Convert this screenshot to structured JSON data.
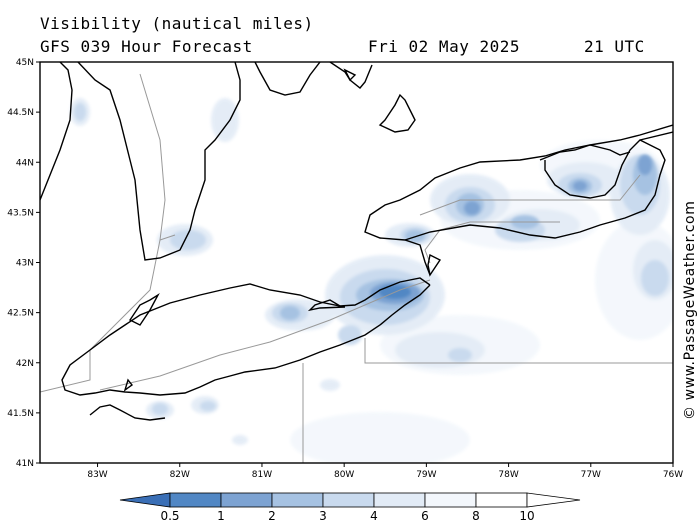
{
  "header": {
    "title": "Visibility (nautical miles)",
    "subtitle": "GFS 039 Hour Forecast",
    "date": "Fri 02 May 2025",
    "time": "21 UTC"
  },
  "map": {
    "lat_labels": [
      "45N",
      "44.5N",
      "44N",
      "43.5N",
      "43N",
      "42.5N",
      "42N",
      "41.5N",
      "41N"
    ],
    "lon_labels": [
      "83W",
      "82W",
      "81W",
      "80W",
      "79W",
      "78W",
      "77W",
      "76W"
    ],
    "lat_range": [
      41,
      45
    ],
    "lon_range": [
      -83.7,
      -76
    ],
    "colors": {
      "coast": "#000000",
      "border": "#999999",
      "v05": "#3a6fb6",
      "v1": "#5187c4",
      "v2": "#7da3d2",
      "v3": "#a6c2e2",
      "v4": "#c9daee",
      "v6": "#e2ebf6",
      "v8": "#f3f7fc"
    }
  },
  "legend": {
    "labels": [
      "0.5",
      "1",
      "2",
      "3",
      "4",
      "6",
      "8",
      "10"
    ],
    "colors": [
      "#3a6fb6",
      "#5187c4",
      "#7da3d2",
      "#a6c2e2",
      "#c9daee",
      "#e2ebf6",
      "#f3f7fc",
      "#ffffff"
    ]
  },
  "credit": "© www.PassageWeather.com"
}
